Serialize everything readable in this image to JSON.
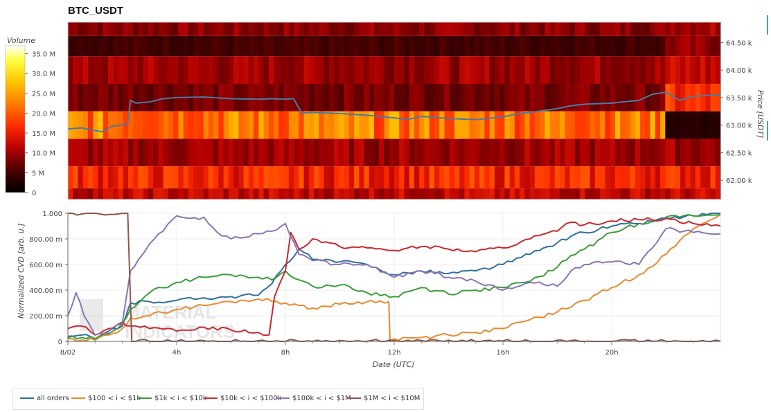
{
  "title": "BTC_USDT",
  "colorbar": {
    "label": "Volume",
    "ticks": [
      "35.0 M",
      "30.0 M",
      "25.0 M",
      "20.0 M",
      "15.0 M",
      "10.0 M",
      "5 M",
      "0"
    ],
    "values": [
      35,
      30,
      25,
      20,
      15,
      10,
      5,
      0
    ]
  },
  "heatmap_axis": {
    "label": "Price [USDT]",
    "ticks": [
      "64.50 k",
      "64.00 k",
      "63.50 k",
      "63.00 k",
      "62.50 k",
      "62.00 k"
    ],
    "values": [
      64500,
      64000,
      63500,
      63000,
      62500,
      62000
    ]
  },
  "cvd_axis": {
    "ylabel": "Normalized CVD [arb. u.]",
    "yticks": [
      "1.000",
      "800.00 m",
      "600.00 m",
      "400.00 m",
      "200.00 m",
      "0"
    ],
    "yvalues": [
      1.0,
      0.8,
      0.6,
      0.4,
      0.2,
      0
    ],
    "xlabel": "Date (UTC)",
    "xticks": [
      "8/02",
      "4h",
      "8h",
      "12h",
      "16h",
      "20h"
    ],
    "xvalues": [
      0,
      4,
      8,
      12,
      16,
      20
    ]
  },
  "watermark": [
    "MATERIAL",
    "INDICATORS"
  ],
  "chart_data": [
    {
      "type": "heatmap",
      "title": "BTC_USDT",
      "xlabel": "",
      "ylabel": "Price [USDT]",
      "x_range_hours": [
        0,
        24
      ],
      "price_levels": [
        64750,
        64500,
        64000,
        63500,
        63000,
        62500,
        62000,
        61750
      ],
      "volume_colorbar_range": [
        0,
        37
      ],
      "volume_profile_by_level_M": [
        {
          "price": 64750,
          "volume_early": 9,
          "volume_late": 11
        },
        {
          "price": 64500,
          "volume_early": 5,
          "volume_late": 9
        },
        {
          "price": 64000,
          "volume_early": 10,
          "volume_late": 12
        },
        {
          "price": 63500,
          "volume_early": 8,
          "volume_late": 16
        },
        {
          "price": 63000,
          "volume_early": 22,
          "volume_late": 3
        },
        {
          "price": 62500,
          "volume_early": 10,
          "volume_late": 10
        },
        {
          "price": 62000,
          "volume_early": 16,
          "volume_late": 16
        },
        {
          "price": 61750,
          "volume_early": 12,
          "volume_late": 12
        }
      ],
      "price_line": {
        "color": "#4a7aa3",
        "x": [
          0,
          0.5,
          1,
          1.3,
          1.6,
          2,
          2.2,
          2.3,
          2.5,
          3,
          3.5,
          4,
          5,
          6,
          7,
          7.5,
          8,
          8.3,
          8.6,
          9,
          10,
          11,
          12,
          12.5,
          13,
          14,
          15,
          16,
          16.5,
          17,
          18,
          18.5,
          19,
          20,
          21,
          21.5,
          22,
          22.5,
          23,
          23.5,
          24
        ],
        "y": [
          62930,
          62950,
          62900,
          62880,
          62980,
          63000,
          63020,
          63450,
          63400,
          63420,
          63480,
          63500,
          63510,
          63480,
          63470,
          63480,
          63470,
          63480,
          63220,
          63230,
          63210,
          63180,
          63130,
          63100,
          63160,
          63120,
          63100,
          63150,
          63200,
          63230,
          63300,
          63350,
          63380,
          63400,
          63450,
          63560,
          63600,
          63450,
          63520,
          63540,
          63550
        ]
      }
    },
    {
      "type": "line",
      "title": "",
      "xlabel": "Date (UTC)",
      "ylabel": "Normalized CVD [arb. u.]",
      "xlim": [
        0,
        24
      ],
      "ylim": [
        0,
        1.0
      ],
      "legend_position": "bottom",
      "series": [
        {
          "name": "all orders",
          "color": "#2f6ea0",
          "x": [
            0,
            0.5,
            1,
            1.5,
            2,
            2.3,
            3,
            4,
            5,
            6,
            7,
            7.5,
            8,
            8.5,
            9,
            10,
            11,
            12,
            13,
            14,
            15,
            16,
            17,
            18,
            18.5,
            19,
            20,
            21,
            22,
            23,
            24
          ],
          "y": [
            0.03,
            0.05,
            0.02,
            0.08,
            0.12,
            0.3,
            0.31,
            0.32,
            0.34,
            0.35,
            0.36,
            0.45,
            0.6,
            0.72,
            0.64,
            0.62,
            0.6,
            0.52,
            0.55,
            0.53,
            0.55,
            0.6,
            0.68,
            0.77,
            0.82,
            0.85,
            0.9,
            0.92,
            0.96,
            0.98,
            1.0
          ]
        },
        {
          "name": "$100 < i < $1k",
          "color": "#e8892f",
          "x": [
            0,
            0.5,
            1,
            1.5,
            2,
            2.3,
            3,
            4,
            5,
            6,
            7,
            8,
            8.5,
            9,
            10,
            11,
            11.8,
            11.85,
            12,
            13,
            14,
            15,
            16,
            17,
            18,
            19,
            20,
            21,
            22,
            23,
            24
          ],
          "y": [
            0.02,
            0.01,
            0.01,
            0.05,
            0.1,
            0.18,
            0.2,
            0.25,
            0.28,
            0.31,
            0.33,
            0.3,
            0.28,
            0.26,
            0.29,
            0.31,
            0.31,
            0.0,
            0.02,
            0.03,
            0.05,
            0.07,
            0.1,
            0.17,
            0.23,
            0.32,
            0.42,
            0.52,
            0.68,
            0.88,
            0.99
          ]
        },
        {
          "name": "$1k < i < $10k",
          "color": "#3a9d3a",
          "x": [
            0,
            0.5,
            1,
            1.5,
            2,
            2.3,
            3,
            4,
            5,
            6,
            7,
            7.5,
            8,
            8.5,
            9,
            10,
            11,
            12,
            13,
            14,
            15,
            16,
            17,
            18,
            18.5,
            19,
            20,
            21,
            22,
            23,
            24
          ],
          "y": [
            0.04,
            0.03,
            0.02,
            0.06,
            0.14,
            0.25,
            0.38,
            0.46,
            0.5,
            0.52,
            0.5,
            0.48,
            0.55,
            0.48,
            0.43,
            0.44,
            0.38,
            0.35,
            0.42,
            0.37,
            0.4,
            0.42,
            0.47,
            0.58,
            0.67,
            0.72,
            0.85,
            0.92,
            0.97,
            0.98,
            0.99
          ]
        },
        {
          "name": "$10k < i < $100k",
          "color": "#c8282e",
          "x": [
            0,
            0.5,
            1,
            1.5,
            2,
            2.3,
            3,
            4,
            5,
            6,
            7,
            7.4,
            7.6,
            8,
            8.2,
            8.5,
            9,
            10,
            11,
            12,
            13,
            14,
            15,
            16,
            17,
            18,
            18.5,
            19,
            20,
            21,
            22,
            23,
            24
          ],
          "y": [
            0.1,
            0.12,
            0.05,
            0.1,
            0.15,
            0.12,
            0.1,
            0.08,
            0.11,
            0.09,
            0.07,
            0.05,
            0.35,
            0.55,
            0.85,
            0.72,
            0.8,
            0.74,
            0.73,
            0.71,
            0.74,
            0.72,
            0.7,
            0.73,
            0.8,
            0.86,
            0.93,
            0.91,
            0.94,
            0.95,
            0.96,
            0.92,
            0.9
          ]
        },
        {
          "name": "$100k < i < $1M",
          "color": "#8b73b5",
          "x": [
            0,
            0.3,
            0.6,
            1,
            1.3,
            1.6,
            2,
            2.3,
            2.6,
            3,
            3.5,
            4,
            4.5,
            5,
            5.5,
            6,
            7,
            7.5,
            8,
            8.5,
            9,
            10,
            11,
            12,
            13,
            14,
            15,
            16,
            17,
            18,
            18.5,
            19,
            20,
            21,
            22,
            23,
            24
          ],
          "y": [
            0.2,
            0.38,
            0.2,
            0.05,
            0.06,
            0.1,
            0.14,
            0.55,
            0.64,
            0.76,
            0.86,
            0.98,
            0.96,
            0.97,
            0.85,
            0.8,
            0.84,
            0.86,
            0.92,
            0.68,
            0.63,
            0.6,
            0.6,
            0.5,
            0.55,
            0.5,
            0.47,
            0.4,
            0.46,
            0.43,
            0.55,
            0.6,
            0.62,
            0.6,
            0.88,
            0.85,
            0.84
          ]
        },
        {
          "name": "$1M < i < $10M",
          "color": "#8c564b",
          "x": [
            0,
            2.2,
            2.35,
            2.5,
            24
          ],
          "y": [
            1.0,
            1.0,
            0.0,
            0.0,
            0.0
          ]
        }
      ]
    }
  ]
}
